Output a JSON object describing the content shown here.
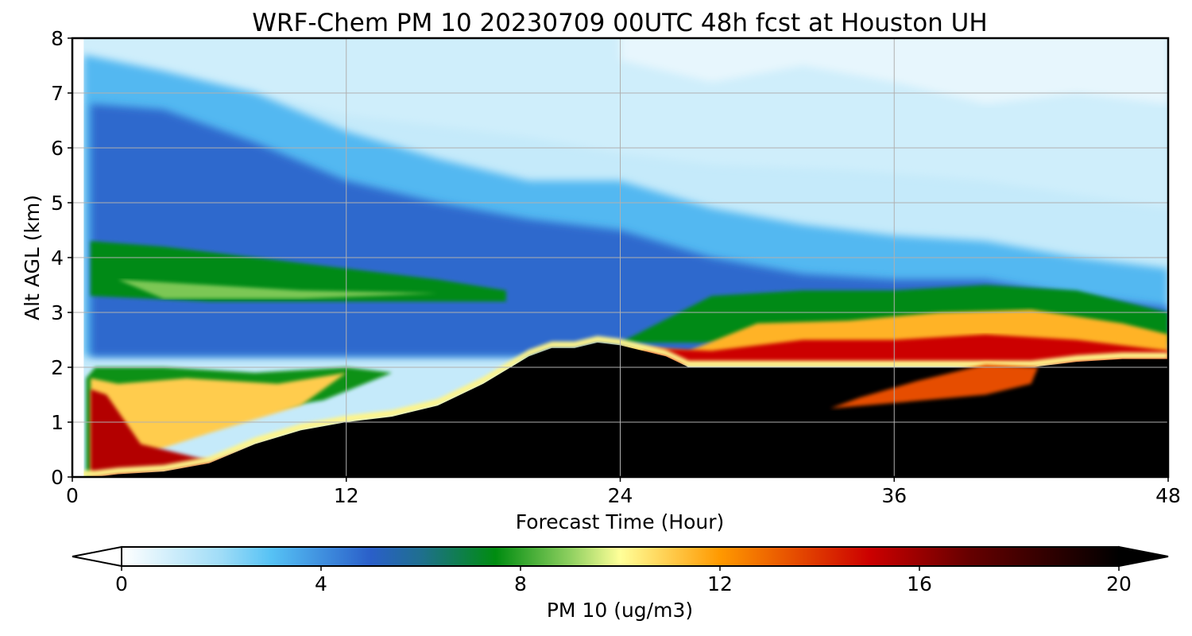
{
  "chart_data": {
    "type": "heatmap",
    "title": "WRF-Chem PM 10  20230709 00UTC 48h fcst at Houston UH",
    "xlabel": "Forecast Time (Hour)",
    "ylabel": "Alt AGL (km)",
    "xlim": [
      0,
      48
    ],
    "ylim": [
      0,
      8
    ],
    "xticks": [
      0,
      12,
      24,
      36,
      48
    ],
    "yticks": [
      0,
      1,
      2,
      3,
      4,
      5,
      6,
      7,
      8
    ],
    "grid": true,
    "colorbar": {
      "label": "PM 10  (ug/m3)",
      "range": [
        0,
        20
      ],
      "ticks": [
        0,
        4,
        8,
        12,
        16,
        20
      ],
      "extend": "both",
      "stops": [
        {
          "v": 0,
          "c": "#ffffff"
        },
        {
          "v": 2,
          "c": "#9fdcf7"
        },
        {
          "v": 3,
          "c": "#56c2f5"
        },
        {
          "v": 5,
          "c": "#2a5fc9"
        },
        {
          "v": 6,
          "c": "#1f6f8f"
        },
        {
          "v": 7.5,
          "c": "#008c10"
        },
        {
          "v": 9,
          "c": "#8fd060"
        },
        {
          "v": 10,
          "c": "#ffff99"
        },
        {
          "v": 12,
          "c": "#ff9900"
        },
        {
          "v": 15,
          "c": "#cc0000"
        },
        {
          "v": 17,
          "c": "#660000"
        },
        {
          "v": 20,
          "c": "#000000"
        }
      ]
    },
    "field_description": {
      "x_hours": [
        0,
        1,
        2,
        4,
        6,
        8,
        10,
        12,
        14,
        16,
        18,
        20,
        21,
        22,
        23,
        24,
        26,
        27,
        28,
        30,
        32,
        34,
        36,
        38,
        40,
        42,
        44,
        46,
        48
      ],
      "ground_top_km": [
        0,
        0,
        0.05,
        0.1,
        0.25,
        0.6,
        0.85,
        1.0,
        1.1,
        1.3,
        1.7,
        2.2,
        2.35,
        2.35,
        2.45,
        2.4,
        2.2,
        2.0,
        2.0,
        2.0,
        2.0,
        2.0,
        2.0,
        2.0,
        2.0,
        2.0,
        2.1,
        2.15,
        2.15
      ]
    }
  }
}
